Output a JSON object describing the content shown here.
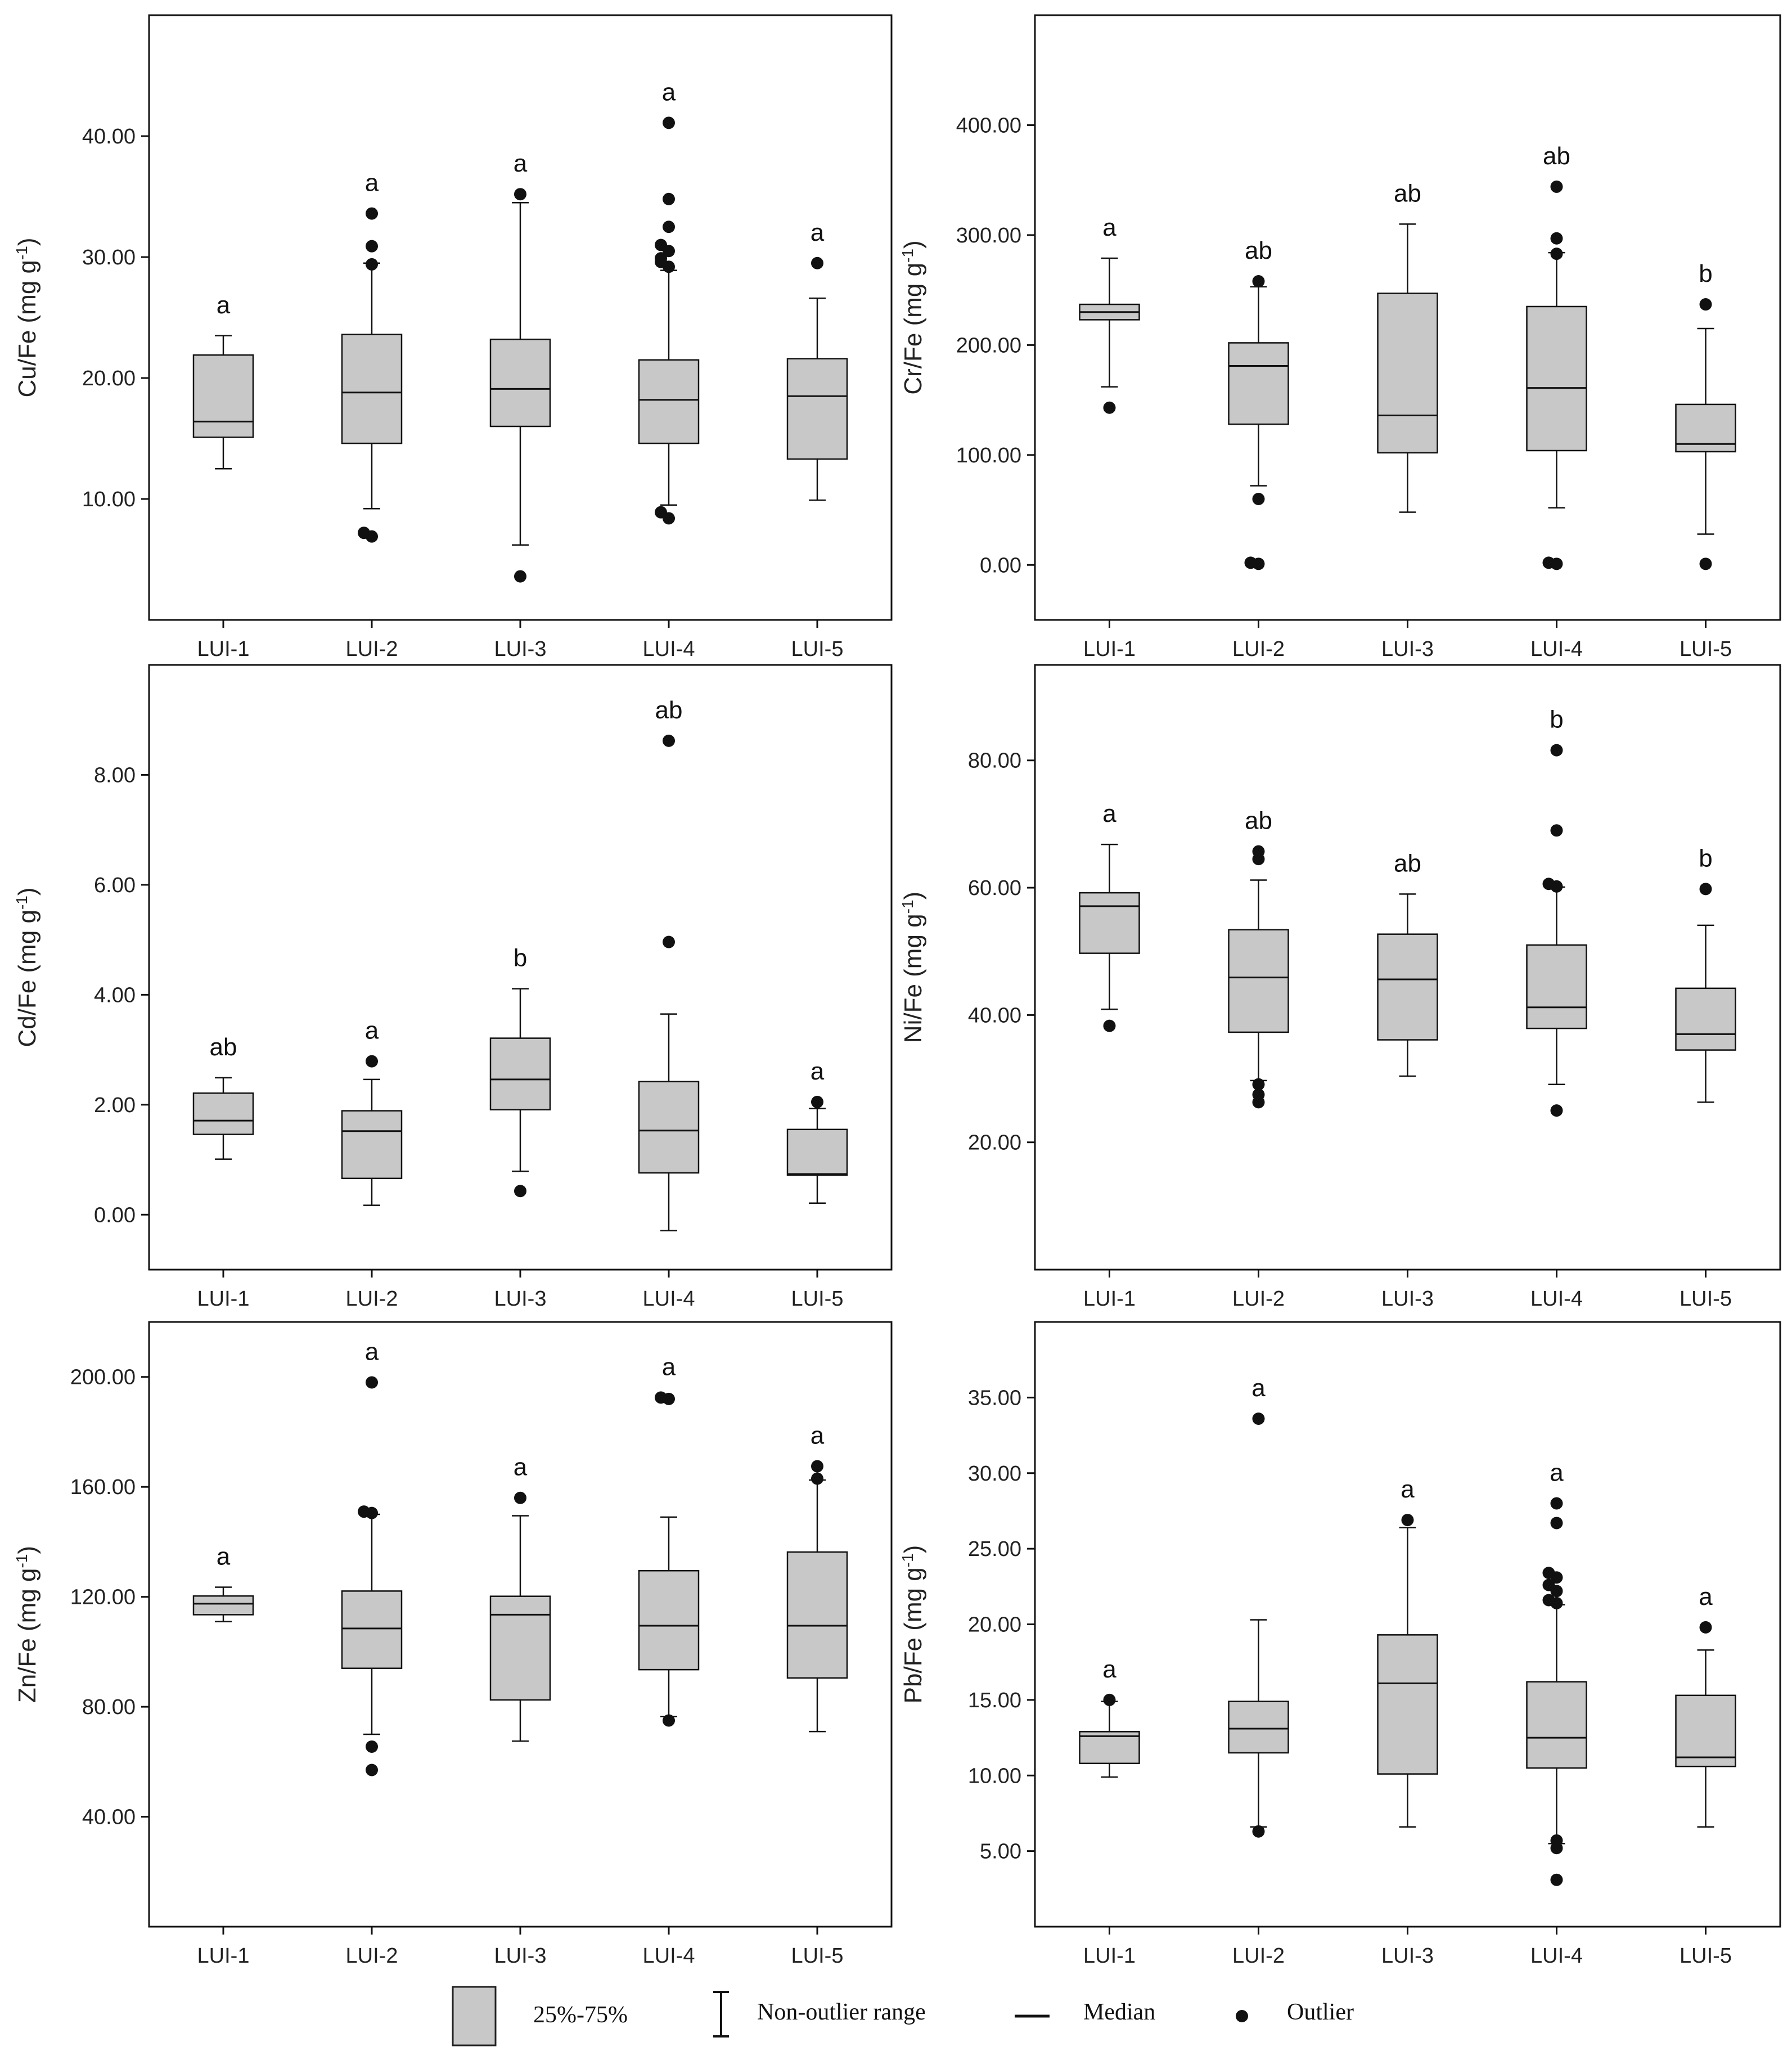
{
  "legend": {
    "iqr": "25%-75%",
    "range": "Non-outlier range",
    "median": "Median",
    "outlier": "Outlier"
  },
  "chart_data": [
    {
      "type": "boxplot",
      "title": "",
      "ylabel": "Cu/Fe (mg g-1)",
      "ylabel_main": "Cu/Fe (mg g",
      "ylabel_sup": "-1",
      "ylabel_close": ")",
      "categories": [
        "LUI-1",
        "LUI-2",
        "LUI-3",
        "LUI-4",
        "LUI-5"
      ],
      "ylim": [
        0,
        50
      ],
      "yticks": [
        10,
        20,
        30,
        40
      ],
      "ytick_labels": [
        "10.00",
        "20.00",
        "30.00",
        "40.00"
      ],
      "boxes": [
        {
          "q1": 15.1,
          "median": 16.4,
          "q3": 21.9,
          "whisker_low": 12.5,
          "whisker_high": 23.5,
          "outliers": [],
          "sig": "a"
        },
        {
          "q1": 14.6,
          "median": 18.8,
          "q3": 23.6,
          "whisker_low": 9.2,
          "whisker_high": 29.5,
          "outliers": [
            6.9,
            7.2,
            29.4,
            30.9,
            33.6
          ],
          "sig": "a"
        },
        {
          "q1": 16.0,
          "median": 19.1,
          "q3": 23.2,
          "whisker_low": 6.2,
          "whisker_high": 34.5,
          "outliers": [
            3.6,
            35.2
          ],
          "sig": "a"
        },
        {
          "q1": 14.6,
          "median": 18.2,
          "q3": 21.5,
          "whisker_low": 9.5,
          "whisker_high": 28.9,
          "outliers": [
            8.4,
            8.9,
            29.2,
            29.6,
            29.9,
            30.5,
            31.0,
            32.5,
            34.8,
            41.1
          ],
          "sig": "a"
        },
        {
          "q1": 13.3,
          "median": 18.5,
          "q3": 21.6,
          "whisker_low": 9.9,
          "whisker_high": 26.6,
          "outliers": [
            29.5
          ],
          "sig": "a"
        }
      ]
    },
    {
      "type": "boxplot",
      "title": "",
      "ylabel": "Cr/Fe (mg g-1)",
      "ylabel_main": "Cr/Fe (mg g",
      "ylabel_sup": "-1",
      "ylabel_close": ")",
      "categories": [
        "LUI-1",
        "LUI-2",
        "LUI-3",
        "LUI-4",
        "LUI-5"
      ],
      "ylim": [
        -50,
        500
      ],
      "yticks": [
        0,
        100,
        200,
        300,
        400
      ],
      "ytick_labels": [
        "0.00",
        "100.00",
        "200.00",
        "300.00",
        "400.00"
      ],
      "boxes": [
        {
          "q1": 223,
          "median": 230,
          "q3": 237,
          "whisker_low": 162,
          "whisker_high": 279,
          "outliers": [
            143
          ],
          "sig": "a"
        },
        {
          "q1": 128,
          "median": 181,
          "q3": 202,
          "whisker_low": 72,
          "whisker_high": 253,
          "outliers": [
            1,
            2,
            60,
            258
          ],
          "sig": "ab"
        },
        {
          "q1": 102,
          "median": 136,
          "q3": 247,
          "whisker_low": 48,
          "whisker_high": 310,
          "outliers": [],
          "sig": "ab"
        },
        {
          "q1": 104,
          "median": 161,
          "q3": 235,
          "whisker_low": 52,
          "whisker_high": 284,
          "outliers": [
            1,
            2,
            283,
            297,
            344
          ],
          "sig": "ab"
        },
        {
          "q1": 103,
          "median": 110,
          "q3": 146,
          "whisker_low": 28,
          "whisker_high": 215,
          "outliers": [
            1,
            237
          ],
          "sig": "b"
        }
      ]
    },
    {
      "type": "boxplot",
      "title": "",
      "ylabel": "Cd/Fe (mg g-1)",
      "ylabel_main": "Cd/Fe (mg g",
      "ylabel_sup": "-1",
      "ylabel_close": ")",
      "categories": [
        "LUI-1",
        "LUI-2",
        "LUI-3",
        "LUI-4",
        "LUI-5"
      ],
      "ylim": [
        -1,
        10
      ],
      "yticks": [
        0,
        2,
        4,
        6,
        8
      ],
      "ytick_labels": [
        "0.00",
        "2.00",
        "4.00",
        "6.00",
        "8.00"
      ],
      "boxes": [
        {
          "q1": 1.46,
          "median": 1.71,
          "q3": 2.21,
          "whisker_low": 1.01,
          "whisker_high": 2.49,
          "outliers": [],
          "sig": "ab"
        },
        {
          "q1": 0.66,
          "median": 1.52,
          "q3": 1.89,
          "whisker_low": 0.17,
          "whisker_high": 2.46,
          "outliers": [
            2.79
          ],
          "sig": "a"
        },
        {
          "q1": 1.91,
          "median": 2.46,
          "q3": 3.21,
          "whisker_low": 0.79,
          "whisker_high": 4.11,
          "outliers": [
            0.43
          ],
          "sig": "b"
        },
        {
          "q1": 0.76,
          "median": 1.53,
          "q3": 2.42,
          "whisker_low": -0.29,
          "whisker_high": 3.65,
          "outliers": [
            4.96,
            8.62
          ],
          "sig": "ab"
        },
        {
          "q1": 0.72,
          "median": 0.74,
          "q3": 1.55,
          "whisker_low": 0.21,
          "whisker_high": 1.93,
          "outliers": [
            2.05
          ],
          "sig": "a"
        }
      ]
    },
    {
      "type": "boxplot",
      "title": "",
      "ylabel": "Ni/Fe (mg g-1)",
      "ylabel_main": "Ni/Fe (mg g",
      "ylabel_sup": "-1",
      "ylabel_close": ")",
      "categories": [
        "LUI-1",
        "LUI-2",
        "LUI-3",
        "LUI-4",
        "LUI-5"
      ],
      "ylim": [
        0,
        95
      ],
      "yticks": [
        20,
        40,
        60,
        80
      ],
      "ytick_labels": [
        "20.00",
        "40.00",
        "60.00",
        "80.00"
      ],
      "boxes": [
        {
          "q1": 49.7,
          "median": 57.1,
          "q3": 59.2,
          "whisker_low": 40.9,
          "whisker_high": 66.8,
          "outliers": [
            38.3
          ],
          "sig": "a"
        },
        {
          "q1": 37.3,
          "median": 45.9,
          "q3": 53.4,
          "whisker_low": 29.7,
          "whisker_high": 61.2,
          "outliers": [
            26.3,
            27.5,
            29.1,
            64.5,
            65.7
          ],
          "sig": "ab"
        },
        {
          "q1": 36.1,
          "median": 45.6,
          "q3": 52.7,
          "whisker_low": 30.4,
          "whisker_high": 59.0,
          "outliers": [],
          "sig": "ab"
        },
        {
          "q1": 37.9,
          "median": 41.2,
          "q3": 51.0,
          "whisker_low": 29.1,
          "whisker_high": 60.1,
          "outliers": [
            25.0,
            60.2,
            60.6,
            69.0,
            81.6
          ],
          "sig": "b"
        },
        {
          "q1": 34.5,
          "median": 37.0,
          "q3": 44.2,
          "whisker_low": 26.3,
          "whisker_high": 54.1,
          "outliers": [
            59.8
          ],
          "sig": "b"
        }
      ]
    },
    {
      "type": "boxplot",
      "title": "",
      "ylabel": "Zn/Fe (mg g-1)",
      "ylabel_main": "Zn/Fe (mg g",
      "ylabel_sup": "-1",
      "ylabel_close": ")",
      "categories": [
        "LUI-1",
        "LUI-2",
        "LUI-3",
        "LUI-4",
        "LUI-5"
      ],
      "ylim": [
        0,
        220
      ],
      "yticks": [
        40,
        80,
        120,
        160,
        200
      ],
      "ytick_labels": [
        "40.00",
        "80.00",
        "120.00",
        "160.00",
        "200.00"
      ],
      "boxes": [
        {
          "q1": 113.5,
          "median": 117.5,
          "q3": 120.3,
          "whisker_low": 111,
          "whisker_high": 123.5,
          "outliers": [],
          "sig": "a"
        },
        {
          "q1": 94,
          "median": 108.5,
          "q3": 122.1,
          "whisker_low": 70,
          "whisker_high": 150,
          "outliers": [
            57,
            65.5,
            150.5,
            151,
            198
          ],
          "sig": "a"
        },
        {
          "q1": 82.5,
          "median": 113.5,
          "q3": 120.2,
          "whisker_low": 67.5,
          "whisker_high": 149.5,
          "outliers": [
            156
          ],
          "sig": "a"
        },
        {
          "q1": 93.5,
          "median": 109.5,
          "q3": 129.5,
          "whisker_low": 76.5,
          "whisker_high": 149,
          "outliers": [
            75,
            192,
            192.5
          ],
          "sig": "a"
        },
        {
          "q1": 90.5,
          "median": 109.5,
          "q3": 136.3,
          "whisker_low": 71,
          "whisker_high": 162.5,
          "outliers": [
            163,
            167.5
          ],
          "sig": "a"
        }
      ]
    },
    {
      "type": "boxplot",
      "title": "",
      "ylabel": "Pb/Fe (mg g-1)",
      "ylabel_main": "Pb/Fe (mg g",
      "ylabel_sup": "-1",
      "ylabel_close": ")",
      "categories": [
        "LUI-1",
        "LUI-2",
        "LUI-3",
        "LUI-4",
        "LUI-5"
      ],
      "ylim": [
        0,
        40
      ],
      "yticks": [
        5,
        10,
        15,
        20,
        25,
        30,
        35
      ],
      "ytick_labels": [
        "5.00",
        "10.00",
        "15.00",
        "20.00",
        "25.00",
        "30.00",
        "35.00"
      ],
      "boxes": [
        {
          "q1": 10.8,
          "median": 12.6,
          "q3": 12.9,
          "whisker_low": 9.9,
          "whisker_high": 14.9,
          "outliers": [
            15.0
          ],
          "sig": "a"
        },
        {
          "q1": 11.5,
          "median": 13.1,
          "q3": 14.9,
          "whisker_low": 6.6,
          "whisker_high": 20.3,
          "outliers": [
            6.3,
            33.6
          ],
          "sig": "a"
        },
        {
          "q1": 10.1,
          "median": 16.1,
          "q3": 19.3,
          "whisker_low": 6.6,
          "whisker_high": 26.4,
          "outliers": [
            26.9
          ],
          "sig": "a"
        },
        {
          "q1": 10.5,
          "median": 12.5,
          "q3": 16.2,
          "whisker_low": 5.5,
          "whisker_high": 21.3,
          "outliers": [
            3.1,
            5.2,
            5.7,
            21.4,
            21.6,
            22.2,
            22.6,
            23.1,
            23.4,
            26.7,
            28.0
          ],
          "sig": "a"
        },
        {
          "q1": 10.6,
          "median": 11.2,
          "q3": 15.3,
          "whisker_low": 6.6,
          "whisker_high": 18.3,
          "outliers": [
            19.8
          ],
          "sig": "a"
        }
      ]
    }
  ]
}
